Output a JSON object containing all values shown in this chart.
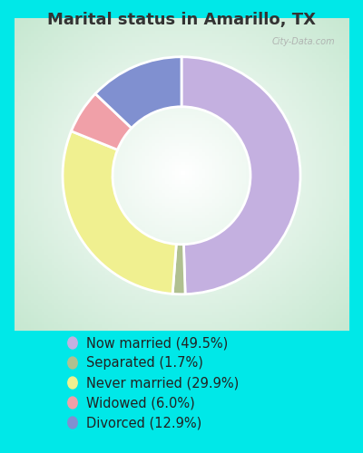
{
  "title": "Marital status in Amarillo, TX",
  "segments": [
    {
      "label": "Now married (49.5%)",
      "value": 49.5,
      "color": "#c4b0e0"
    },
    {
      "label": "Separated (1.7%)",
      "value": 1.7,
      "color": "#b0c090"
    },
    {
      "label": "Never married (29.9%)",
      "value": 29.9,
      "color": "#f0f090"
    },
    {
      "label": "Widowed (6.0%)",
      "value": 6.0,
      "color": "#f0a0a8"
    },
    {
      "label": "Divorced (12.9%)",
      "value": 12.9,
      "color": "#8090d0"
    }
  ],
  "wedge_order": [
    0,
    1,
    2,
    3,
    4
  ],
  "bg_outer": "#00e8e8",
  "bg_inner_center": "#ffffff",
  "bg_inner_edge": "#c8e8d0",
  "title_color": "#333333",
  "title_fontsize": 13,
  "watermark": "City-Data.com",
  "legend_fontsize": 10.5,
  "donut_width": 0.42,
  "start_angle": 90,
  "edge_color": "#ffffff",
  "edge_linewidth": 2.0
}
